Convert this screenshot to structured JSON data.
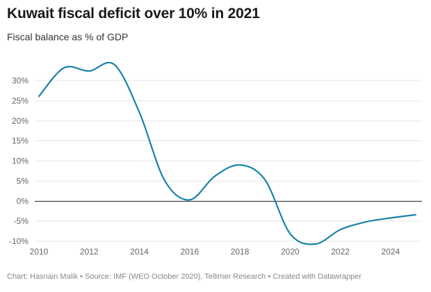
{
  "title": "Kuwait fiscal deficit over 10% in 2021",
  "subtitle": "Fiscal balance as % of GDP",
  "footer": {
    "chart_by": "Chart: Hasnain Malik",
    "source": "Source: IMF (WEO October 2020), Tellimer Research",
    "created_with": "Created with Datawrapper",
    "separator": " • "
  },
  "chart_data": {
    "type": "line",
    "title": "Kuwait fiscal deficit over 10% in 2021",
    "subtitle": "Fiscal balance as % of GDP",
    "xlabel": "",
    "ylabel": "",
    "x": [
      2010,
      2011,
      2012,
      2013,
      2014,
      2015,
      2016,
      2017,
      2018,
      2019,
      2020,
      2021,
      2022,
      2023,
      2024,
      2025
    ],
    "series": [
      {
        "name": "",
        "color": "#1a82a8",
        "values": [
          26.1,
          33.2,
          32.4,
          34.0,
          22.1,
          5.2,
          0.3,
          6.2,
          9.0,
          5.3,
          -8.1,
          -10.7,
          -7.1,
          -5.2,
          -4.2,
          -3.4
        ]
      }
    ],
    "xlim": [
      2010,
      2025
    ],
    "ylim": [
      -10,
      30
    ],
    "xticks": [
      2010,
      2012,
      2014,
      2016,
      2018,
      2020,
      2022,
      2024
    ],
    "yticks": [
      -10,
      -5,
      0,
      5,
      10,
      15,
      20,
      25,
      30
    ],
    "ytick_labels": [
      "-10%",
      "-5%",
      "0%",
      "5%",
      "10%",
      "15%",
      "20%",
      "25%",
      "30%"
    ],
    "grid": true,
    "zero_line_color": "#222222",
    "gridline_color": "#e5e5e5"
  }
}
